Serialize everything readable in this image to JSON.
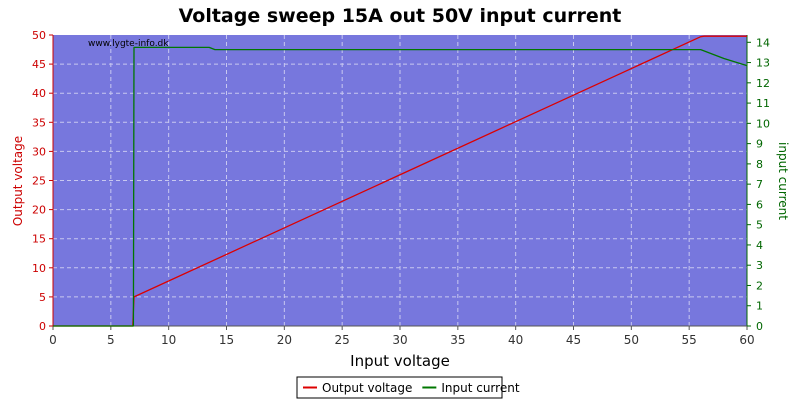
{
  "chart_data": {
    "type": "line",
    "title": "Voltage sweep 15A out 50V input current",
    "watermark": "www.lygte-info.dk",
    "xlabel": "Input voltage",
    "ylabel_left": "Output voltage",
    "ylabel_right": "input current",
    "xlim": [
      0,
      60
    ],
    "ylim_left": [
      0,
      50
    ],
    "ylim_right": [
      0,
      14.36
    ],
    "x_ticks": [
      0,
      5,
      10,
      15,
      20,
      25,
      30,
      35,
      40,
      45,
      50,
      55,
      60
    ],
    "y_left_ticks": [
      0,
      5,
      10,
      15,
      20,
      25,
      30,
      35,
      40,
      45,
      50
    ],
    "y_right_ticks": [
      0,
      1,
      2,
      3,
      4,
      5,
      6,
      7,
      8,
      9,
      10,
      11,
      12,
      13,
      14
    ],
    "grid": true,
    "plot_background": "#7777dd",
    "legend_position": "bottom-center",
    "series": [
      {
        "name": "Output voltage",
        "axis": "left",
        "color": "#dd0000",
        "x": [
          0,
          6.85,
          6.9,
          7.0,
          56.0,
          56.3,
          60
        ],
        "y": [
          0,
          0,
          0,
          5.0,
          49.7,
          49.8,
          49.8
        ]
      },
      {
        "name": "Input current",
        "axis": "right",
        "color": "#007700",
        "x": [
          0,
          6.9,
          6.95,
          7.0,
          13.5,
          14.0,
          45.0,
          56.0,
          58.0,
          60
        ],
        "y": [
          0,
          0,
          0,
          13.75,
          13.75,
          13.64,
          13.64,
          13.64,
          13.2,
          12.85
        ]
      }
    ]
  }
}
